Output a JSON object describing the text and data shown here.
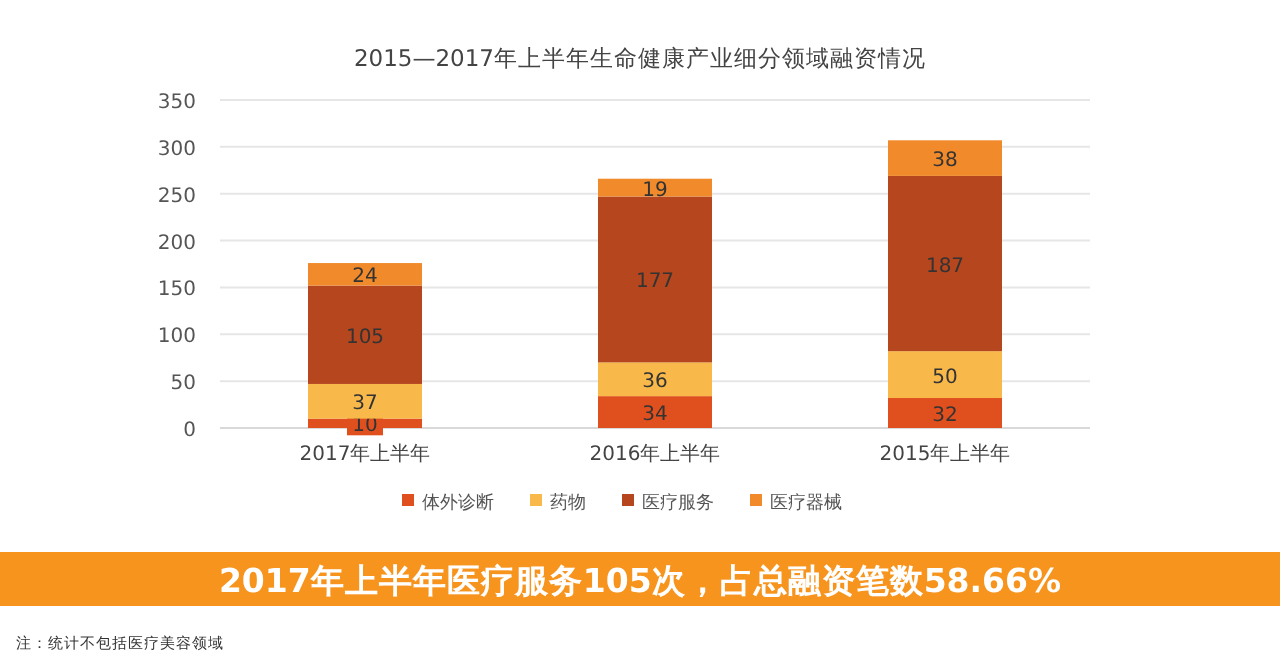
{
  "chart_data": {
    "type": "bar",
    "title": "2015—2017年上半年生命健康产业细分领域融资情况",
    "categories": [
      "2017年上半年",
      "2016年上半年",
      "2015年上半年"
    ],
    "stacked": true,
    "data_labels": true,
    "grid": "y",
    "legend": "bottom",
    "ylim": [
      0,
      350
    ],
    "yticks": [
      0,
      50,
      100,
      150,
      200,
      250,
      300,
      350
    ],
    "series": [
      {
        "name": "体外诊断",
        "color": "#e0501e",
        "values": [
          10,
          34,
          32
        ]
      },
      {
        "name": "药物",
        "color": "#f9b94a",
        "values": [
          37,
          36,
          50
        ]
      },
      {
        "name": "医疗服务",
        "color": "#b5461e",
        "values": [
          105,
          177,
          187
        ]
      },
      {
        "name": "医疗器械",
        "color": "#f08a2a",
        "values": [
          24,
          19,
          38
        ]
      }
    ],
    "annotations": [
      "2017年上半年医疗服务105次，占总融资笔数58.66%",
      "注：统计不包括医疗美容领域"
    ]
  }
}
